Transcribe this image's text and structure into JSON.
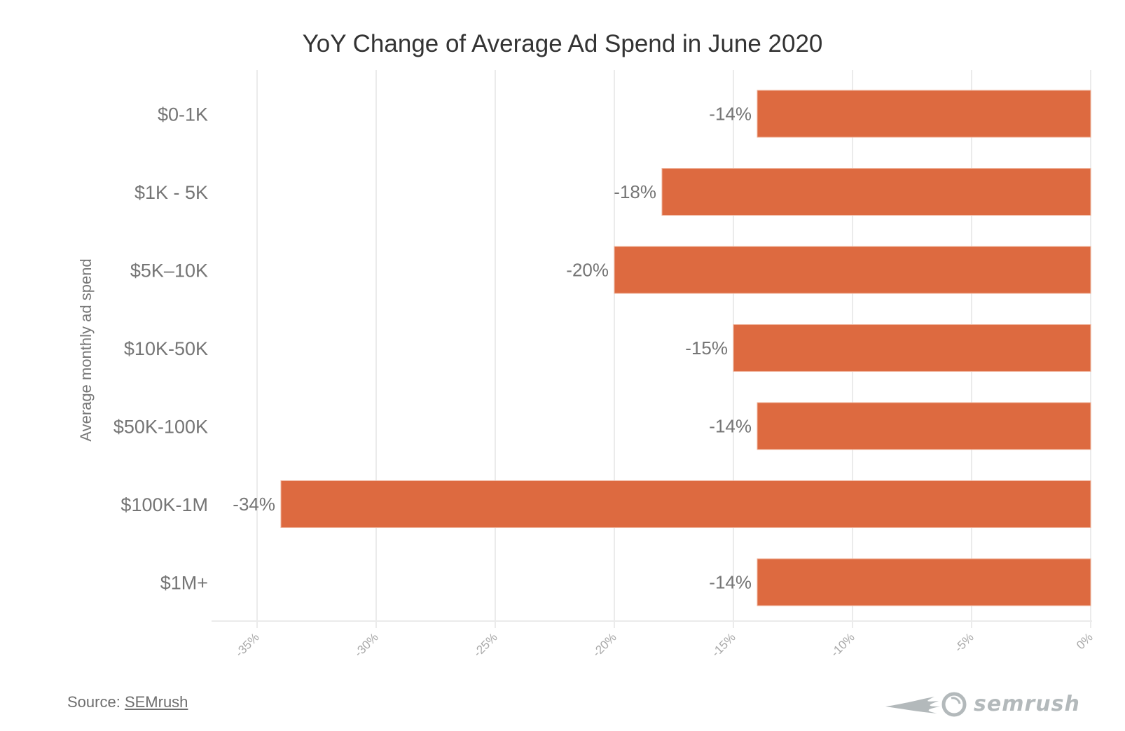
{
  "chart_data": {
    "type": "bar",
    "orientation": "horizontal",
    "title": "YoY Change of Average Ad Spend in June 2020",
    "xlabel": "",
    "ylabel": "Average monthly ad spend",
    "categories": [
      "$0-1K",
      "$1K - 5K",
      "$5K–10K",
      "$10K-50K",
      "$50K-100K",
      "$100K-1M",
      "$1M+"
    ],
    "values": [
      -14,
      -18,
      -20,
      -15,
      -14,
      -34,
      -14
    ],
    "data_labels": [
      "-14%",
      "-18%",
      "-20%",
      "-15%",
      "-14%",
      "-34%",
      "-14%"
    ],
    "xlim": [
      -37,
      0
    ],
    "xticks": [
      -35,
      -30,
      -25,
      -20,
      -15,
      -10,
      -5,
      0
    ],
    "xtick_labels": [
      "-35%",
      "-30%",
      "-25%",
      "-20%",
      "-15%",
      "-10%",
      "-5%",
      "0%"
    ],
    "grid": true,
    "bar_color": "#dd6a40",
    "legend": "none"
  },
  "footer": {
    "source_prefix": "Source: ",
    "source_link": "SEMrush",
    "logo_text": "semrush"
  }
}
